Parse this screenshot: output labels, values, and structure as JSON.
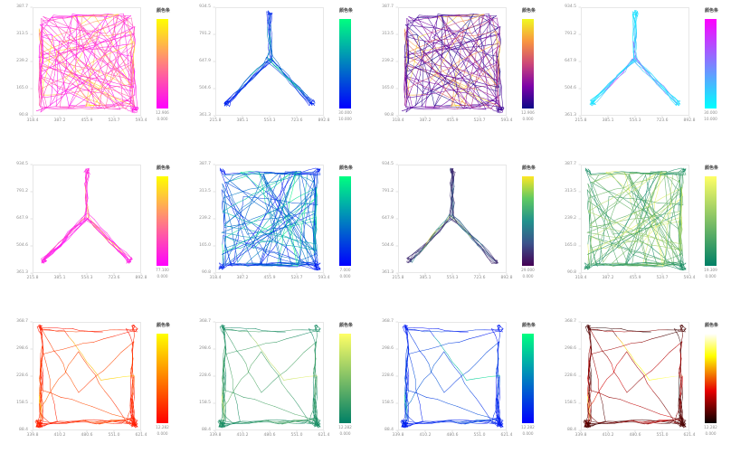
{
  "page": {
    "background": "#ffffff",
    "frame_color": "#e2e2e2",
    "tick_color": "#8f8f8f"
  },
  "colorbar_title": "颜色条",
  "chart_data": [
    {
      "id": "r1c1",
      "type": "line",
      "arena": "open-field-square",
      "colormap": "spring",
      "cmap_stops": [
        [
          0,
          "#ff00ff"
        ],
        [
          1,
          "#ffff00"
        ]
      ],
      "xticks": [
        "318.4",
        "387.2",
        "455.9",
        "524.7",
        "593.4"
      ],
      "yticks": [
        "387.7",
        "313.5",
        "239.2",
        "165.0",
        "90.8"
      ],
      "xlim": [
        318.4,
        593.4
      ],
      "ylim": [
        90.8,
        387.7
      ],
      "cbar_max": "12.906",
      "cbar_min": "0.000",
      "gen": {
        "seed": 7101,
        "n": 140,
        "cross": 0.38,
        "step": 0.3,
        "bias": 0.18,
        "visits": 0
      }
    },
    {
      "id": "r1c2",
      "type": "line",
      "arena": "y-maze",
      "colormap": "winter",
      "cmap_stops": [
        [
          0,
          "#0000ff"
        ],
        [
          1,
          "#00ff80"
        ]
      ],
      "xticks": [
        "215.8",
        "385.1",
        "554.3",
        "723.6",
        "892.8"
      ],
      "yticks": [
        "934.5",
        "791.2",
        "647.9",
        "504.6",
        "361.3"
      ],
      "xlim": [
        215.8,
        892.8
      ],
      "ylim": [
        361.3,
        934.5
      ],
      "cbar_max": "30.000",
      "cbar_min": "10.000",
      "gen": {
        "seed": 8201,
        "n": 0,
        "cross": 0,
        "step": 0,
        "bias": 0.7,
        "visits": 13
      }
    },
    {
      "id": "r1c3",
      "type": "line",
      "arena": "open-field-square",
      "colormap": "plasma",
      "cmap_stops": [
        [
          0,
          "#0d0887"
        ],
        [
          0.25,
          "#7e03a8"
        ],
        [
          0.5,
          "#cc4778"
        ],
        [
          0.75,
          "#f89540"
        ],
        [
          1,
          "#f0f921"
        ]
      ],
      "xticks": [
        "318.4",
        "387.2",
        "455.9",
        "524.7",
        "593.4"
      ],
      "yticks": [
        "387.7",
        "313.5",
        "239.2",
        "165.0",
        "90.8"
      ],
      "xlim": [
        318.4,
        593.4
      ],
      "ylim": [
        90.8,
        387.7
      ],
      "cbar_max": "12.906",
      "cbar_min": "0.000",
      "gen": {
        "seed": 7101,
        "n": 140,
        "cross": 0.38,
        "step": 0.3,
        "bias": 0.18,
        "visits": 0
      }
    },
    {
      "id": "r1c4",
      "type": "line",
      "arena": "y-maze",
      "colormap": "cool",
      "cmap_stops": [
        [
          0,
          "#00ffff"
        ],
        [
          1,
          "#ff00ff"
        ]
      ],
      "xticks": [
        "215.8",
        "385.1",
        "554.3",
        "723.6",
        "892.8"
      ],
      "yticks": [
        "934.5",
        "791.2",
        "647.9",
        "504.6",
        "361.3"
      ],
      "xlim": [
        215.8,
        892.8
      ],
      "ylim": [
        361.3,
        934.5
      ],
      "cbar_max": "30.000",
      "cbar_min": "10.000",
      "gen": {
        "seed": 8202,
        "n": 0,
        "cross": 0,
        "step": 0,
        "bias": 0.2,
        "visits": 13
      }
    },
    {
      "id": "r2c1",
      "type": "line",
      "arena": "y-maze",
      "colormap": "spring",
      "cmap_stops": [
        [
          0,
          "#ff00ff"
        ],
        [
          1,
          "#ffff00"
        ]
      ],
      "xticks": [
        "215.8",
        "385.1",
        "554.3",
        "723.6",
        "892.8"
      ],
      "yticks": [
        "934.5",
        "791.2",
        "647.9",
        "504.6",
        "361.3"
      ],
      "xlim": [
        215.8,
        892.8
      ],
      "ylim": [
        361.3,
        934.5
      ],
      "cbar_max": "77.100",
      "cbar_min": "0.000",
      "gen": {
        "seed": 8203,
        "n": 0,
        "cross": 0,
        "step": 0,
        "bias": 0.18,
        "visits": 13
      }
    },
    {
      "id": "r2c2",
      "type": "line",
      "arena": "open-field-square",
      "colormap": "winter",
      "cmap_stops": [
        [
          0,
          "#0000ff"
        ],
        [
          1,
          "#00ff80"
        ]
      ],
      "xticks": [
        "318.4",
        "387.2",
        "455.9",
        "524.7",
        "593.4"
      ],
      "yticks": [
        "387.7",
        "313.5",
        "239.2",
        "165.0",
        "90.8"
      ],
      "xlim": [
        318.4,
        593.4
      ],
      "ylim": [
        90.8,
        387.7
      ],
      "cbar_max": "7.000",
      "cbar_min": "0.000",
      "gen": {
        "seed": 7102,
        "n": 140,
        "cross": 0.38,
        "step": 0.3,
        "bias": 0.5,
        "visits": 0
      }
    },
    {
      "id": "r2c3",
      "type": "line",
      "arena": "y-maze",
      "colormap": "viridis",
      "cmap_stops": [
        [
          0,
          "#440154"
        ],
        [
          0.25,
          "#3b528b"
        ],
        [
          0.5,
          "#21918c"
        ],
        [
          0.75,
          "#5ec962"
        ],
        [
          1,
          "#fde725"
        ]
      ],
      "xticks": [
        "215.8",
        "385.1",
        "554.3",
        "723.6",
        "892.8"
      ],
      "yticks": [
        "934.5",
        "791.2",
        "647.9",
        "504.6",
        "361.3"
      ],
      "xlim": [
        215.8,
        892.8
      ],
      "ylim": [
        361.3,
        934.5
      ],
      "cbar_max": "29.000",
      "cbar_min": "0.000",
      "gen": {
        "seed": 8204,
        "n": 0,
        "cross": 0,
        "step": 0,
        "bias": 0.62,
        "visits": 13
      }
    },
    {
      "id": "r2c4",
      "type": "line",
      "arena": "open-field-square",
      "colormap": "summer",
      "cmap_stops": [
        [
          0,
          "#008066"
        ],
        [
          1,
          "#ffff66"
        ]
      ],
      "xticks": [
        "318.4",
        "387.2",
        "455.9",
        "524.7",
        "593.4"
      ],
      "yticks": [
        "387.7",
        "313.5",
        "239.2",
        "165.0",
        "90.8"
      ],
      "xlim": [
        318.4,
        593.4
      ],
      "ylim": [
        90.8,
        387.7
      ],
      "cbar_max": "19.309",
      "cbar_min": "0.000",
      "gen": {
        "seed": 7102,
        "n": 140,
        "cross": 0.38,
        "step": 0.3,
        "bias": 0.45,
        "visits": 0
      }
    },
    {
      "id": "r3c1",
      "type": "line",
      "arena": "open-field-square",
      "colormap": "autumn",
      "cmap_stops": [
        [
          0,
          "#ff0000"
        ],
        [
          1,
          "#ffff00"
        ]
      ],
      "xticks": [
        "339.8",
        "410.2",
        "480.6",
        "551.0",
        "621.4"
      ],
      "yticks": [
        "368.7",
        "298.6",
        "228.6",
        "158.5",
        "88.4"
      ],
      "xlim": [
        339.8,
        621.4
      ],
      "ylim": [
        88.4,
        368.7
      ],
      "cbar_max": "12.282",
      "cbar_min": "0.000",
      "gen": {
        "seed": 7103,
        "n": 110,
        "cross": 0.1,
        "step": 0.18,
        "bias": 0.3,
        "visits": 0
      }
    },
    {
      "id": "r3c2",
      "type": "line",
      "arena": "open-field-square",
      "colormap": "summer",
      "cmap_stops": [
        [
          0,
          "#008066"
        ],
        [
          1,
          "#ffff66"
        ]
      ],
      "xticks": [
        "339.8",
        "410.2",
        "480.6",
        "551.0",
        "621.4"
      ],
      "yticks": [
        "368.7",
        "298.6",
        "228.6",
        "158.5",
        "88.4"
      ],
      "xlim": [
        339.8,
        621.4
      ],
      "ylim": [
        88.4,
        368.7
      ],
      "cbar_max": "12.282",
      "cbar_min": "0.000",
      "gen": {
        "seed": 7103,
        "n": 110,
        "cross": 0.1,
        "step": 0.18,
        "bias": 0.3,
        "visits": 0
      }
    },
    {
      "id": "r3c3",
      "type": "line",
      "arena": "open-field-square",
      "colormap": "winter",
      "cmap_stops": [
        [
          0,
          "#0000ff"
        ],
        [
          1,
          "#00ff80"
        ]
      ],
      "xticks": [
        "339.8",
        "410.2",
        "480.6",
        "551.0",
        "621.4"
      ],
      "yticks": [
        "368.7",
        "298.6",
        "228.6",
        "158.5",
        "88.4"
      ],
      "xlim": [
        339.8,
        621.4
      ],
      "ylim": [
        88.4,
        368.7
      ],
      "cbar_max": "12.282",
      "cbar_min": "0.000",
      "gen": {
        "seed": 7103,
        "n": 110,
        "cross": 0.1,
        "step": 0.18,
        "bias": 0.3,
        "visits": 0
      }
    },
    {
      "id": "r3c4",
      "type": "line",
      "arena": "open-field-square",
      "colormap": "hot",
      "cmap_stops": [
        [
          0,
          "#0b0000"
        ],
        [
          0.36,
          "#e60000"
        ],
        [
          0.75,
          "#ffff00"
        ],
        [
          1,
          "#ffffff"
        ]
      ],
      "xticks": [
        "339.8",
        "410.2",
        "480.6",
        "551.0",
        "621.4"
      ],
      "yticks": [
        "368.7",
        "298.6",
        "228.6",
        "158.5",
        "88.4"
      ],
      "xlim": [
        339.8,
        621.4
      ],
      "ylim": [
        88.4,
        368.7
      ],
      "cbar_max": "12.282",
      "cbar_min": "0.000",
      "gen": {
        "seed": 7103,
        "n": 110,
        "cross": 0.1,
        "step": 0.18,
        "bias": 0.3,
        "visits": 0
      }
    }
  ]
}
